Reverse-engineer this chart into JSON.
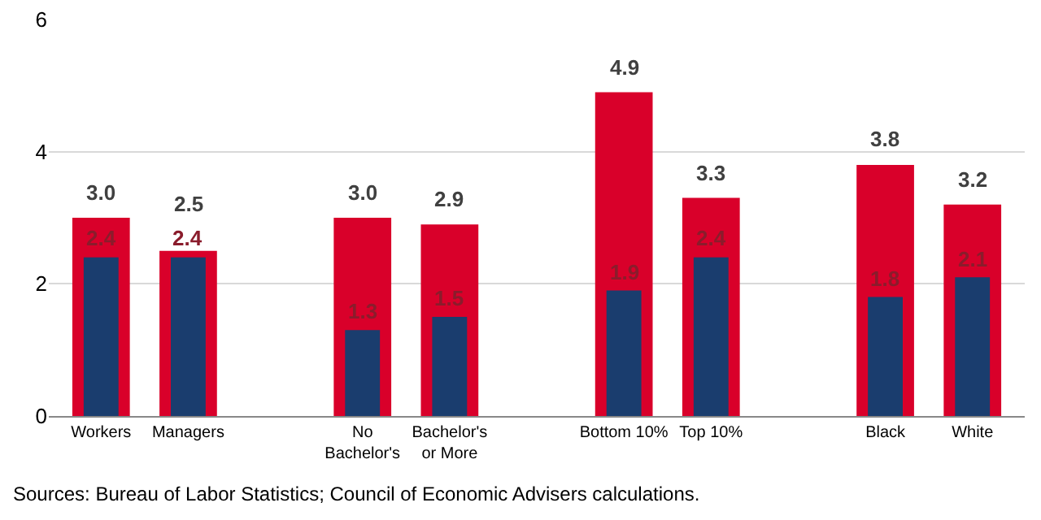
{
  "chart_data": {
    "type": "bar",
    "categories": [
      "Workers",
      "Managers",
      null,
      "No Bachelor's",
      "Bachelor's or More",
      null,
      "Bottom 10%",
      "Top 10%",
      null,
      "Black",
      "White"
    ],
    "series": [
      {
        "color": "#d9002a",
        "values": [
          3.0,
          2.5,
          null,
          3.0,
          2.9,
          null,
          4.9,
          3.3,
          null,
          3.8,
          3.2
        ],
        "value_labels": [
          "3.0",
          "2.5",
          null,
          "3.0",
          "2.9",
          null,
          "4.9",
          "3.3",
          null,
          "3.8",
          "3.2"
        ]
      },
      {
        "color": "#1a3d6e",
        "values": [
          2.4,
          2.4,
          null,
          1.3,
          1.5,
          null,
          1.9,
          2.4,
          null,
          1.8,
          2.1
        ],
        "value_labels": [
          "2.4",
          "2.4",
          null,
          "1.3",
          "1.5",
          null,
          "1.9",
          "2.4",
          null,
          "1.8",
          "2.1"
        ]
      }
    ],
    "ylim": [
      0,
      6
    ],
    "yticks": [
      0,
      2,
      4,
      6
    ],
    "grid": "y",
    "annotations": [
      "Sources: Bureau of Labor Statistics; Council of Economic Advisers calculations."
    ]
  }
}
